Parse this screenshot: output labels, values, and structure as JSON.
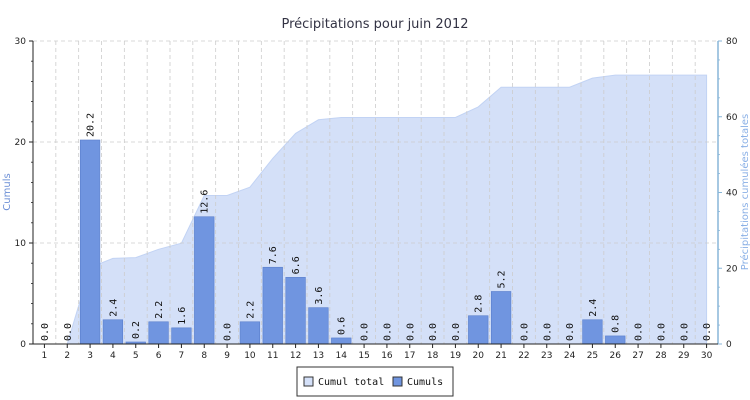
{
  "chart_data": {
    "type": "bar",
    "title": "Précipitations pour juin 2012",
    "ylabel": "Cumuls",
    "y2label": "Précipitations cumulées totales",
    "categories": [
      "1",
      "2",
      "3",
      "4",
      "5",
      "6",
      "7",
      "8",
      "9",
      "10",
      "11",
      "12",
      "13",
      "14",
      "15",
      "16",
      "17",
      "18",
      "19",
      "20",
      "21",
      "22",
      "23",
      "24",
      "25",
      "26",
      "27",
      "28",
      "29",
      "30"
    ],
    "series": [
      {
        "name": "Cumuls",
        "type": "bar",
        "axis": "left",
        "values": [
          0.0,
          0.0,
          20.2,
          2.4,
          0.2,
          2.2,
          1.6,
          12.6,
          0.0,
          2.2,
          7.6,
          6.6,
          3.6,
          0.6,
          0.0,
          0.0,
          0.0,
          0.0,
          0.0,
          2.8,
          5.2,
          0.0,
          0.0,
          0.0,
          2.4,
          0.8,
          0.0,
          0.0,
          0.0,
          0.0
        ],
        "labels": [
          "0.0",
          "0.0",
          "20.2",
          "2.4",
          "0.2",
          "2.2",
          "1.6",
          "12.6",
          "0.0",
          "2.2",
          "7.6",
          "6.6",
          "3.6",
          "0.6",
          "0.0",
          "0.0",
          "0.0",
          "0.0",
          "0.0",
          "2.8",
          "5.2",
          "0.0",
          "0.0",
          "0.0",
          "2.4",
          "0.8",
          "0.0",
          "0.0",
          "0.0",
          "0.0"
        ]
      },
      {
        "name": "Cumul total",
        "type": "area",
        "axis": "right",
        "values": [
          0.0,
          0.0,
          20.2,
          22.6,
          22.8,
          25.0,
          26.6,
          39.2,
          39.2,
          41.4,
          49.0,
          55.6,
          59.2,
          59.8,
          59.8,
          59.8,
          59.8,
          59.8,
          59.8,
          62.6,
          67.8,
          67.8,
          67.8,
          67.8,
          70.2,
          71.0,
          71.0,
          71.0,
          71.0,
          71.0
        ]
      }
    ],
    "ylim": [
      0,
      30
    ],
    "y2lim": [
      0,
      80
    ],
    "yticks": [
      "0",
      "10",
      "20",
      "30"
    ],
    "y2ticks": [
      "0",
      "20",
      "40",
      "60",
      "80"
    ],
    "grid": true,
    "legend": "bottom-center",
    "legend_items": [
      {
        "name": "Cumul total",
        "swatch": "#d4e0f8"
      },
      {
        "name": "Cumuls",
        "swatch": "#7095e0"
      }
    ],
    "colors": {
      "bar": "#7095e0",
      "bar_stroke": "#5a7fcc",
      "area": "#d4e0f8",
      "area_stroke": "#c2d3f4",
      "axis_left_title": "#6c8fd6",
      "axis_right_title": "#8ab0e6",
      "grid": "#cccccc",
      "axis_right_line": "#88b6d8"
    }
  }
}
